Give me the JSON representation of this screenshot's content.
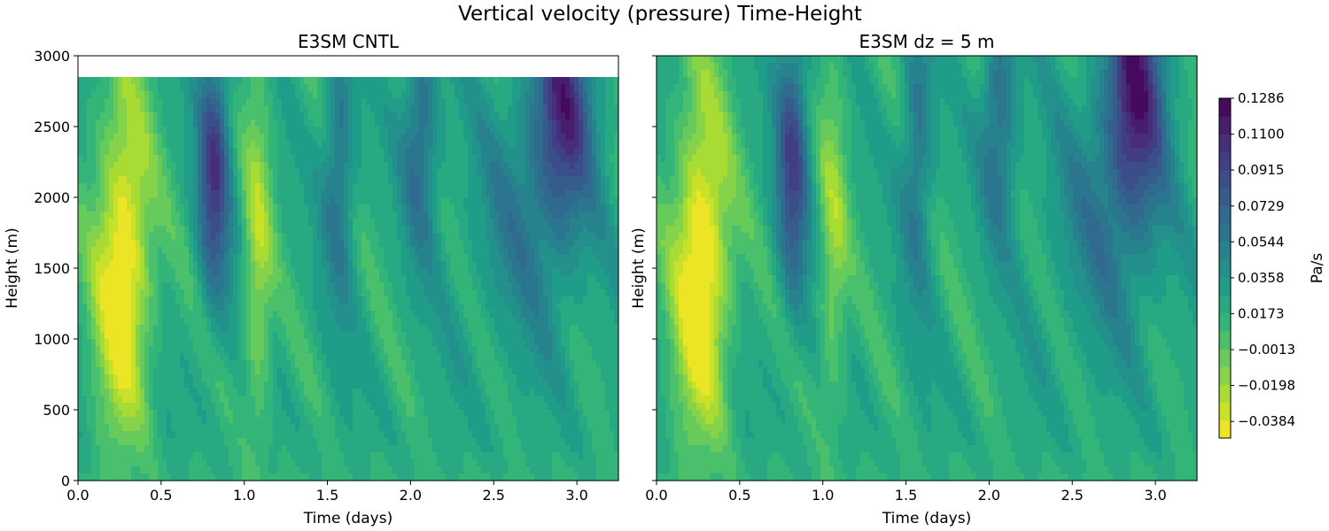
{
  "chart_data": {
    "type": "heatmap",
    "subtype": "filled-contour",
    "suptitle": "Vertical velocity (pressure) Time-Height",
    "colormap": "viridis_r",
    "colorbar": {
      "label": "Pa/s",
      "min": -0.047,
      "max": 0.1286,
      "ticks": [
        0.1286,
        0.11,
        0.0915,
        0.0729,
        0.0544,
        0.0358,
        0.0173,
        -0.0013,
        -0.0198,
        -0.0384
      ],
      "tick_labels": [
        "0.1286",
        "0.1100",
        "0.0915",
        "0.0729",
        "0.0544",
        "0.0358",
        "0.0173",
        "−0.0013",
        "−0.0198",
        "−0.0384"
      ]
    },
    "panels": [
      {
        "title": "E3SM CNTL",
        "xlabel": "Time (days)",
        "ylabel": "Height (m)",
        "xlim": [
          0,
          3.25
        ],
        "ylim": [
          0,
          3000
        ],
        "data_top": 2860,
        "xticks": [
          0.0,
          0.5,
          1.0,
          1.5,
          2.0,
          2.5,
          3.0
        ],
        "xtick_labels": [
          "0.0",
          "0.5",
          "1.0",
          "1.5",
          "2.0",
          "2.5",
          "3.0"
        ],
        "yticks": [
          0,
          500,
          1000,
          1500,
          2000,
          2500,
          3000
        ],
        "ytick_labels": [
          "0",
          "500",
          "1000",
          "1500",
          "2000",
          "2500",
          "3000"
        ],
        "features": [
          {
            "t": 0.27,
            "z": 1500,
            "amp": -0.075,
            "wt": 0.12,
            "wz": 850
          },
          {
            "t": 0.82,
            "z": 2200,
            "amp": 0.075,
            "wt": 0.07,
            "wz": 650
          },
          {
            "t": 1.08,
            "z": 1500,
            "amp": -0.04,
            "wt": 0.06,
            "wz": 900
          },
          {
            "t": 1.57,
            "z": 2300,
            "amp": 0.045,
            "wt": 0.07,
            "wz": 700
          },
          {
            "t": 2.06,
            "z": 2500,
            "amp": 0.05,
            "wt": 0.08,
            "wz": 600
          },
          {
            "t": 2.92,
            "z": 2700,
            "amp": 0.075,
            "wt": 0.13,
            "wz": 600
          },
          {
            "t": 2.7,
            "z": 1900,
            "amp": 0.03,
            "wt": 0.25,
            "wz": 700
          }
        ]
      },
      {
        "title": "E3SM dz = 5 m",
        "xlabel": "Time (days)",
        "ylabel": "Height (m)",
        "xlim": [
          0,
          3.25
        ],
        "ylim": [
          0,
          3000
        ],
        "data_top": 3000,
        "xticks": [
          0.0,
          0.5,
          1.0,
          1.5,
          2.0,
          2.5,
          3.0
        ],
        "xtick_labels": [
          "0.0",
          "0.5",
          "1.0",
          "1.5",
          "2.0",
          "2.5",
          "3.0"
        ],
        "yticks": [
          0,
          500,
          1000,
          1500,
          2000,
          2500,
          3000
        ],
        "ytick_labels": [
          "",
          "",
          "",
          "",
          "",
          "",
          ""
        ],
        "features": [
          {
            "t": 0.27,
            "z": 1500,
            "amp": -0.078,
            "wt": 0.12,
            "wz": 850
          },
          {
            "t": 0.82,
            "z": 2300,
            "amp": 0.07,
            "wt": 0.07,
            "wz": 700
          },
          {
            "t": 1.06,
            "z": 1600,
            "amp": -0.035,
            "wt": 0.06,
            "wz": 900
          },
          {
            "t": 1.57,
            "z": 2400,
            "amp": 0.045,
            "wt": 0.07,
            "wz": 700
          },
          {
            "t": 2.06,
            "z": 2600,
            "amp": 0.05,
            "wt": 0.08,
            "wz": 600
          },
          {
            "t": 2.88,
            "z": 2800,
            "amp": 0.085,
            "wt": 0.13,
            "wz": 650
          },
          {
            "t": 2.7,
            "z": 1900,
            "amp": 0.03,
            "wt": 0.25,
            "wz": 700
          }
        ]
      }
    ]
  }
}
